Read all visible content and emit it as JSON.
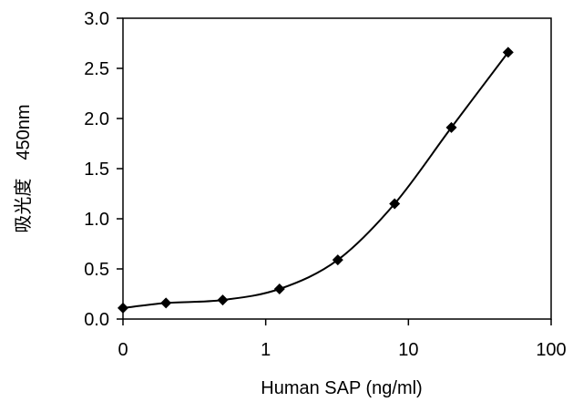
{
  "chart_data": {
    "type": "scatter",
    "xlabel": "Human SAP (ng/ml)",
    "ylabel": "吸光度　450nm",
    "x_scale": "log",
    "xlim": [
      0.1,
      100
    ],
    "ylim": [
      0,
      3.0
    ],
    "x_tick_labels": [
      "0",
      "1",
      "10",
      "100"
    ],
    "y_tick_labels": [
      "0.0",
      "0.5",
      "1.0",
      "1.5",
      "2.0",
      "2.5",
      "3.0"
    ],
    "grid": false,
    "legend": "none",
    "series": [
      {
        "marker": "diamond",
        "line": "smooth",
        "x": [
          0.1,
          0.2,
          0.5,
          1.25,
          3.2,
          8,
          20,
          50
        ],
        "y": [
          0.11,
          0.16,
          0.19,
          0.3,
          0.59,
          1.15,
          1.91,
          2.66
        ]
      }
    ]
  }
}
